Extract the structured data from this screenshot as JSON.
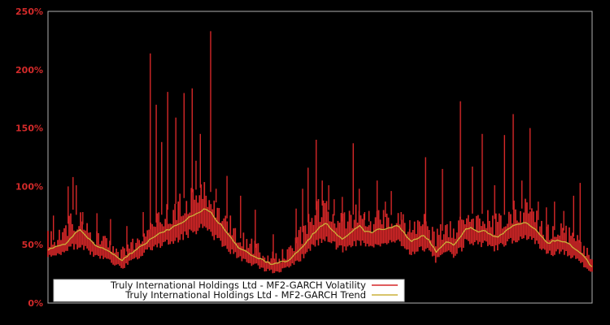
{
  "chart_data": {
    "type": "line",
    "title": "",
    "xlabel": "",
    "ylabel": "",
    "ylim": [
      0,
      250
    ],
    "grid": false,
    "background_color": "#000000",
    "frame_color": "#b0b0b0",
    "tick_label_color": "#d42a2a",
    "y_ticks": [
      {
        "value": 0,
        "label": "0%"
      },
      {
        "value": 50,
        "label": "50%"
      },
      {
        "value": 100,
        "label": "100%"
      },
      {
        "value": 150,
        "label": "150%"
      },
      {
        "value": 200,
        "label": "200%"
      },
      {
        "value": 250,
        "label": "250%"
      }
    ],
    "x_tick_labels": [],
    "series": [
      {
        "name": "Truly International Holdings Ltd - MF2-GARCH Volatility",
        "color": "#d62728",
        "style": "spiky-band",
        "x": [
          0.0,
          0.016,
          0.031,
          0.046,
          0.057,
          0.069,
          0.081,
          0.091,
          0.106,
          0.121,
          0.136,
          0.151,
          0.166,
          0.181,
          0.196,
          0.211,
          0.226,
          0.241,
          0.256,
          0.271,
          0.286,
          0.297,
          0.308,
          0.318,
          0.33,
          0.341,
          0.353,
          0.368,
          0.383,
          0.398,
          0.413,
          0.428,
          0.443,
          0.457,
          0.472,
          0.487,
          0.502,
          0.511,
          0.522,
          0.532,
          0.541,
          0.552,
          0.564,
          0.572,
          0.584,
          0.596,
          0.608,
          0.622,
          0.634,
          0.644,
          0.655,
          0.667,
          0.679,
          0.691,
          0.703,
          0.713,
          0.725,
          0.735,
          0.746,
          0.758,
          0.768,
          0.779,
          0.789,
          0.8,
          0.81,
          0.821,
          0.831,
          0.842,
          0.853,
          0.866,
          0.876,
          0.886,
          0.897,
          0.907,
          0.918,
          0.928,
          0.939,
          0.949,
          0.96,
          0.97,
          0.981,
          0.991,
          1.0
        ],
        "band_low": [
          38,
          40,
          42,
          45,
          46,
          44,
          40,
          38,
          36,
          32,
          28,
          33,
          37,
          42,
          45,
          48,
          50,
          52,
          55,
          58,
          60,
          58,
          52,
          48,
          44,
          40,
          36,
          33,
          30,
          27,
          25,
          26,
          28,
          33,
          38,
          44,
          50,
          52,
          48,
          45,
          43,
          45,
          48,
          50,
          46,
          46,
          48,
          48,
          50,
          50,
          45,
          40,
          42,
          44,
          40,
          34,
          38,
          42,
          38,
          42,
          50,
          50,
          48,
          48,
          46,
          44,
          45,
          48,
          50,
          52,
          54,
          52,
          48,
          44,
          40,
          40,
          42,
          40,
          38,
          36,
          32,
          28,
          25
        ],
        "band_high": [
          62,
          62,
          68,
          88,
          80,
          72,
          66,
          62,
          60,
          56,
          48,
          55,
          60,
          68,
          75,
          85,
          90,
          95,
          100,
          105,
          108,
          105,
          95,
          88,
          80,
          70,
          64,
          58,
          55,
          48,
          45,
          46,
          50,
          60,
          72,
          85,
          92,
          90,
          85,
          80,
          78,
          80,
          85,
          85,
          78,
          78,
          80,
          82,
          84,
          82,
          75,
          68,
          72,
          78,
          70,
          62,
          70,
          74,
          68,
          80,
          85,
          85,
          82,
          85,
          80,
          80,
          80,
          85,
          88,
          88,
          90,
          88,
          82,
          75,
          68,
          70,
          72,
          70,
          66,
          64,
          58,
          48,
          40
        ],
        "spikes_x": [
          0.01,
          0.037,
          0.046,
          0.052,
          0.064,
          0.09,
          0.115,
          0.145,
          0.175,
          0.188,
          0.199,
          0.209,
          0.22,
          0.235,
          0.25,
          0.265,
          0.272,
          0.28,
          0.299,
          0.309,
          0.329,
          0.354,
          0.381,
          0.414,
          0.456,
          0.468,
          0.478,
          0.493,
          0.504,
          0.516,
          0.526,
          0.541,
          0.561,
          0.572,
          0.582,
          0.59,
          0.605,
          0.62,
          0.631,
          0.649,
          0.665,
          0.694,
          0.725,
          0.758,
          0.78,
          0.798,
          0.821,
          0.839,
          0.855,
          0.871,
          0.886,
          0.901,
          0.916,
          0.931,
          0.948,
          0.966,
          0.978
        ],
        "spikes_peak": [
          75,
          100,
          108,
          101,
          78,
          77,
          72,
          66,
          78,
          214,
          170,
          138,
          181,
          159,
          180,
          184,
          122,
          145,
          233,
          98,
          109,
          92,
          80,
          59,
          81,
          98,
          116,
          140,
          105,
          101,
          89,
          91,
          137,
          98,
          78,
          79,
          105,
          87,
          96,
          78,
          71,
          125,
          115,
          173,
          117,
          145,
          101,
          144,
          162,
          105,
          150,
          87,
          82,
          87,
          79,
          92,
          103
        ]
      },
      {
        "name": "Truly International Holdings Ltd - MF2-GARCH Trend",
        "color": "#ccb13a",
        "style": "smooth-line",
        "x": [
          0.0,
          0.016,
          0.031,
          0.046,
          0.057,
          0.069,
          0.081,
          0.091,
          0.106,
          0.121,
          0.136,
          0.151,
          0.166,
          0.181,
          0.196,
          0.211,
          0.226,
          0.241,
          0.256,
          0.271,
          0.286,
          0.297,
          0.308,
          0.318,
          0.33,
          0.341,
          0.353,
          0.368,
          0.383,
          0.398,
          0.413,
          0.428,
          0.443,
          0.457,
          0.472,
          0.487,
          0.502,
          0.511,
          0.522,
          0.532,
          0.541,
          0.552,
          0.564,
          0.572,
          0.584,
          0.596,
          0.608,
          0.622,
          0.634,
          0.644,
          0.655,
          0.667,
          0.679,
          0.691,
          0.703,
          0.713,
          0.725,
          0.735,
          0.746,
          0.758,
          0.768,
          0.779,
          0.789,
          0.8,
          0.81,
          0.821,
          0.831,
          0.842,
          0.853,
          0.866,
          0.876,
          0.886,
          0.897,
          0.907,
          0.918,
          0.928,
          0.939,
          0.949,
          0.96,
          0.97,
          0.981,
          0.991,
          1.0
        ],
        "y": [
          46,
          48,
          50,
          57,
          64,
          58,
          53,
          48,
          46,
          41,
          37,
          42,
          47,
          52,
          57,
          61,
          64,
          68,
          72,
          77,
          80,
          79,
          72,
          67,
          59,
          53,
          46,
          43,
          39,
          36,
          33,
          35,
          37,
          43,
          50,
          59,
          66,
          69,
          63,
          58,
          55,
          59,
          64,
          66,
          61,
          61,
          63,
          64,
          65,
          66,
          60,
          53,
          55,
          58,
          52,
          44,
          49,
          53,
          50,
          56,
          64,
          64,
          61,
          62,
          60,
          56,
          58,
          62,
          66,
          68,
          70,
          67,
          62,
          57,
          51,
          53,
          54,
          52,
          50,
          46,
          42,
          36,
          31
        ]
      }
    ],
    "legend": {
      "position": "lower-left",
      "background": "#ffffff",
      "border_color": "#bdbdbd",
      "entries": [
        {
          "label": "Truly International Holdings Ltd - MF2-GARCH Volatility",
          "color": "#d62728"
        },
        {
          "label": "Truly International Holdings Ltd - MF2-GARCH Trend",
          "color": "#ccb13a"
        }
      ]
    }
  }
}
